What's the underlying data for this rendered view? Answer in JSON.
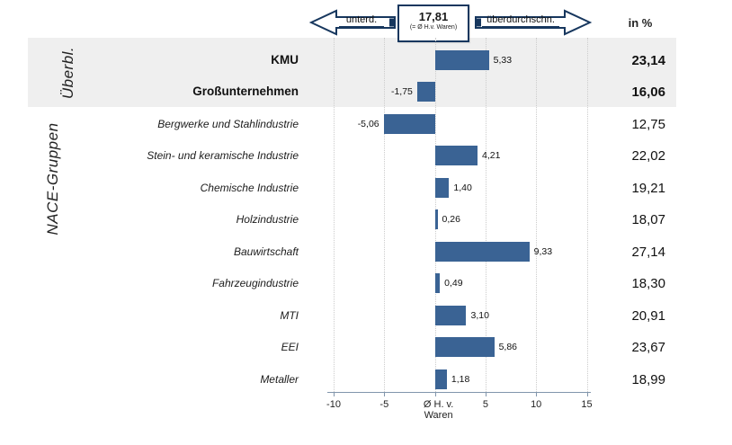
{
  "header": {
    "left_arrow_label": "unterd.",
    "right_arrow_label": "überdurchschn.",
    "mean_value": "17,81",
    "mean_caption": "(= Ø H.v. Waren)",
    "unit_label": "in %"
  },
  "sections": {
    "overview_label": "Überbl.",
    "nace_label": "NACE-Gruppen"
  },
  "axis": {
    "min": -10,
    "max": 15,
    "ticks": [
      {
        "value": -10,
        "label": "-10"
      },
      {
        "value": -5,
        "label": "-5"
      },
      {
        "value": 0,
        "label": "Ø H. v.",
        "label2": "Waren"
      },
      {
        "value": 5,
        "label": "5"
      },
      {
        "value": 10,
        "label": "10"
      },
      {
        "value": 15,
        "label": "15"
      }
    ]
  },
  "rows": [
    {
      "label": "KMU",
      "value": 5.33,
      "value_label": "5,33",
      "percent_label": "23,14",
      "section": "overview"
    },
    {
      "label": "Großunternehmen",
      "value": -1.75,
      "value_label": "-1,75",
      "percent_label": "16,06",
      "section": "overview"
    },
    {
      "label": "Bergwerke und Stahlindustrie",
      "value": -5.06,
      "value_label": "-5,06",
      "percent_label": "12,75",
      "section": "nace"
    },
    {
      "label": "Stein- und keramische Industrie",
      "value": 4.21,
      "value_label": "4,21",
      "percent_label": "22,02",
      "section": "nace"
    },
    {
      "label": "Chemische Industrie",
      "value": 1.4,
      "value_label": "1,40",
      "percent_label": "19,21",
      "section": "nace"
    },
    {
      "label": "Holzindustrie",
      "value": 0.26,
      "value_label": "0,26",
      "percent_label": "18,07",
      "section": "nace"
    },
    {
      "label": "Bauwirtschaft",
      "value": 9.33,
      "value_label": "9,33",
      "percent_label": "27,14",
      "section": "nace"
    },
    {
      "label": "Fahrzeugindustrie",
      "value": 0.49,
      "value_label": "0,49",
      "percent_label": "18,30",
      "section": "nace"
    },
    {
      "label": "MTI",
      "value": 3.1,
      "value_label": "3,10",
      "percent_label": "20,91",
      "section": "nace"
    },
    {
      "label": "EEI",
      "value": 5.86,
      "value_label": "5,86",
      "percent_label": "23,67",
      "section": "nace"
    },
    {
      "label": "Metaller",
      "value": 1.18,
      "value_label": "1,18",
      "percent_label": "18,99",
      "section": "nace"
    }
  ],
  "colors": {
    "bar": "#3A6394",
    "outline": "#17375E",
    "band": "#EFEFEF",
    "gridline": "#CCCCCC",
    "axis": "#8296AC"
  },
  "chart_data": {
    "type": "bar",
    "orientation": "horizontal",
    "title": "",
    "unit": "in %",
    "mean_reference": {
      "numeric": 17.81,
      "display": "17,81",
      "caption": "(= Ø H.v. Waren)"
    },
    "left_annotation": "unterd.",
    "right_annotation": "überdurchschn.",
    "group_labels": [
      "Überbl.",
      "NACE-Gruppen"
    ],
    "categories": [
      "KMU",
      "Großunternehmen",
      "Bergwerke und Stahlindustrie",
      "Stein- und keramische Industrie",
      "Chemische Industrie",
      "Holzindustrie",
      "Bauwirtschaft",
      "Fahrzeugindustrie",
      "MTI",
      "EEI",
      "Metaller"
    ],
    "series": [
      {
        "name": "deviation_from_mean",
        "values": [
          5.33,
          -1.75,
          -5.06,
          4.21,
          1.4,
          0.26,
          9.33,
          0.49,
          3.1,
          5.86,
          1.18
        ]
      },
      {
        "name": "in_percent",
        "values": [
          23.14,
          16.06,
          12.75,
          22.02,
          19.21,
          18.07,
          27.14,
          18.3,
          20.91,
          23.67,
          18.99
        ]
      }
    ],
    "xlabel_at_zero": "Ø H. v. Waren",
    "xlim": [
      -10,
      15
    ],
    "xticks": [
      -10,
      -5,
      0,
      5,
      10,
      15
    ],
    "grid": true,
    "legend": false,
    "bar_color": "#3A6394",
    "highlight_rows_bold": [
      "KMU",
      "Großunternehmen"
    ]
  }
}
